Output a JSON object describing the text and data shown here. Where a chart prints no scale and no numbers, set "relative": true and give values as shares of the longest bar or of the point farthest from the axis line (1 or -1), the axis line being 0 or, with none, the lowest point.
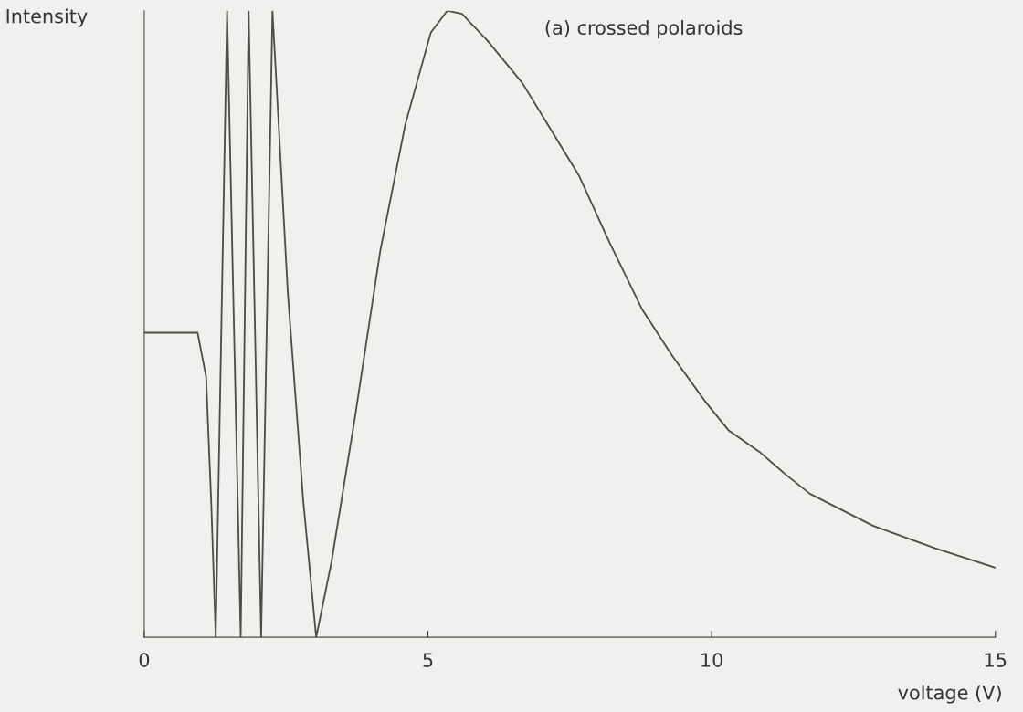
{
  "chart_data": {
    "type": "line",
    "title": "(a) crossed polaroids",
    "xlabel": "voltage (V)",
    "ylabel": "Intensity",
    "relative": true,
    "xlim": [
      0,
      15
    ],
    "xticks": [
      0,
      5,
      10,
      15
    ],
    "grid": false,
    "marker": "none",
    "line_style": "solid",
    "series": [
      {
        "color": "#4a4e44",
        "x": [
          0,
          0.94,
          1.09,
          1.18,
          1.26,
          1.36,
          1.46,
          1.58,
          1.7,
          1.77,
          1.84,
          1.95,
          2.06,
          2.16,
          2.26,
          2.53,
          2.8,
          3.03,
          3.3,
          3.71,
          4.16,
          4.6,
          5.05,
          5.34,
          5.6,
          6.05,
          6.66,
          7.1,
          7.66,
          8.2,
          8.77,
          9.3,
          9.88,
          10.3,
          10.84,
          11.3,
          11.73,
          12.84,
          13.94,
          15
        ],
        "values": [
          0.486,
          0.486,
          0.416,
          0.216,
          0,
          0.5,
          1,
          0.5,
          0,
          0.5,
          1,
          0.5,
          0,
          0.5,
          1,
          0.55,
          0.22,
          0,
          0.12,
          0.349,
          0.617,
          0.818,
          0.965,
          1,
          0.995,
          0.952,
          0.885,
          0.82,
          0.737,
          0.63,
          0.524,
          0.45,
          0.377,
          0.33,
          0.296,
          0.26,
          0.229,
          0.178,
          0.142,
          0.111
        ]
      }
    ]
  }
}
